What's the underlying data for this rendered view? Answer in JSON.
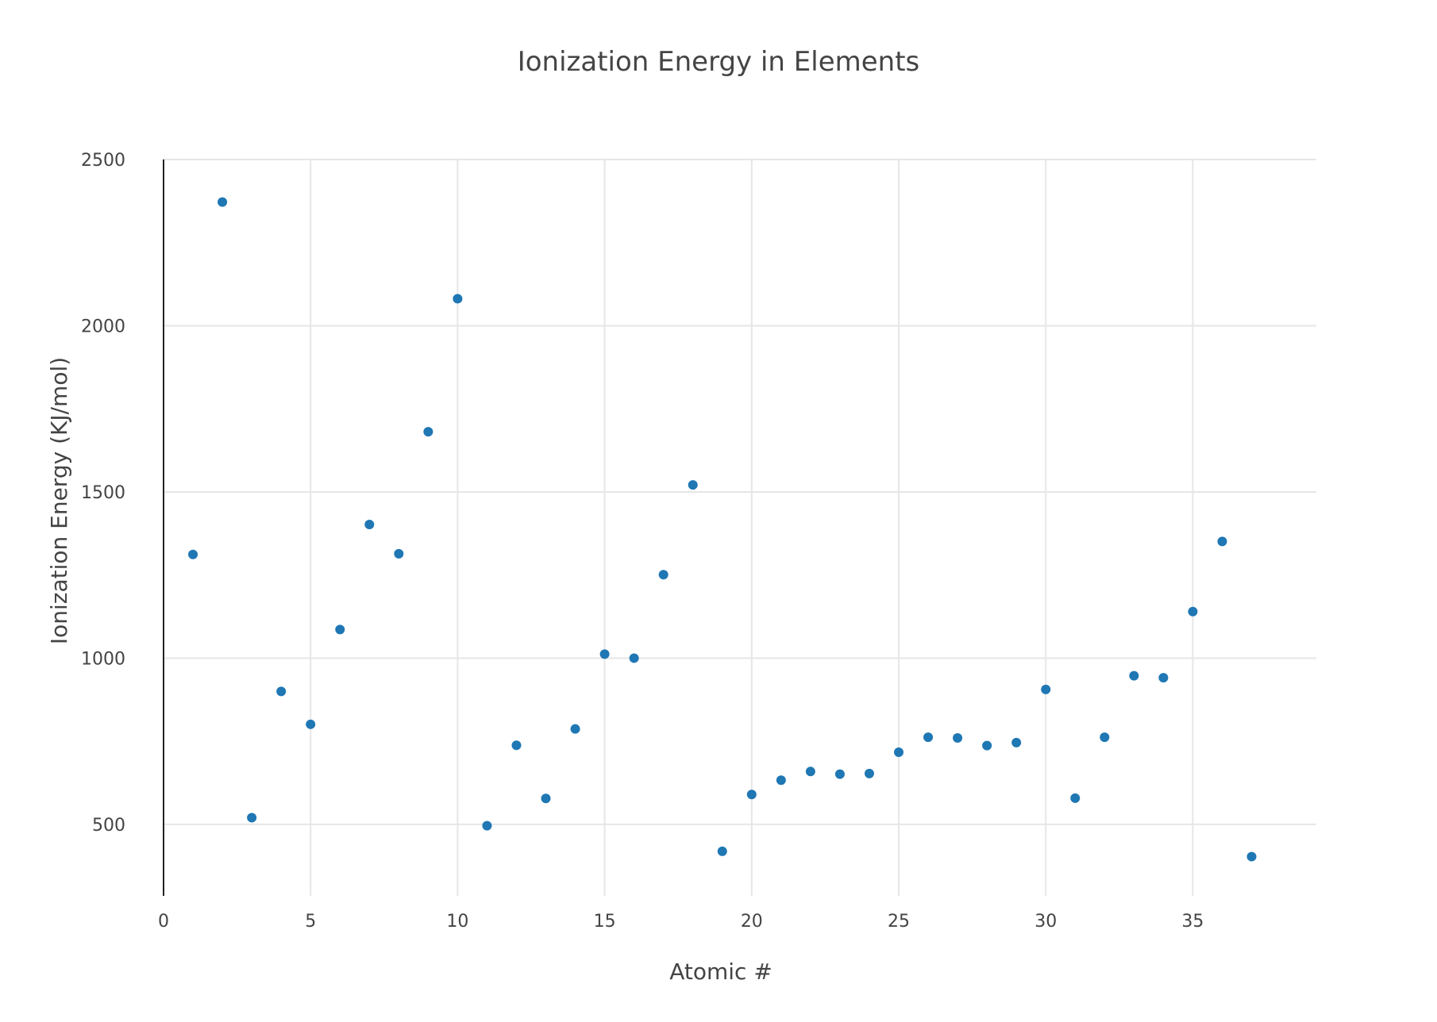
{
  "chart_data": {
    "type": "scatter",
    "title": "Ionization Energy in Elements",
    "xlabel": "Atomic #",
    "ylabel": "Ionization Energy (KJ/mol)",
    "xlim": [
      0,
      39.2
    ],
    "ylim": [
      285,
      2500
    ],
    "x_ticks": [
      0,
      5,
      10,
      15,
      20,
      25,
      30,
      35
    ],
    "y_ticks": [
      500,
      1000,
      1500,
      2000,
      2500
    ],
    "grid": true,
    "legend": "none",
    "marker_color": "#1f77b4",
    "x": [
      1,
      2,
      3,
      4,
      5,
      6,
      7,
      8,
      9,
      10,
      11,
      12,
      13,
      14,
      15,
      16,
      17,
      18,
      19,
      20,
      21,
      22,
      23,
      24,
      25,
      26,
      27,
      28,
      29,
      30,
      31,
      32,
      33,
      34,
      35,
      36,
      37
    ],
    "y": [
      1312,
      2372,
      520,
      900,
      801,
      1086,
      1402,
      1314,
      1681,
      2081,
      496,
      738,
      578,
      787,
      1012,
      1000,
      1251,
      1521,
      419,
      590,
      633,
      659,
      651,
      653,
      717,
      762,
      760,
      737,
      746,
      906,
      579,
      762,
      947,
      941,
      1140,
      1351,
      403
    ]
  }
}
